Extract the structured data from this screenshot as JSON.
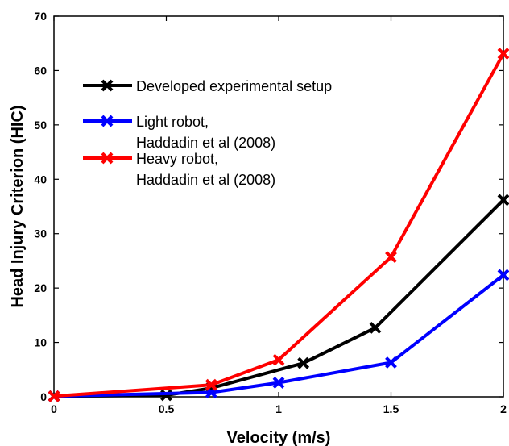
{
  "chart_data": {
    "type": "line",
    "title": "",
    "xlabel": "Velocity (m/s)",
    "ylabel": "Head Injury Criterion (HIC)",
    "xlim": [
      0,
      2
    ],
    "ylim": [
      0,
      70
    ],
    "xticks": [
      "0",
      "0.5",
      "1",
      "1.5",
      "2"
    ],
    "yticks": [
      "0",
      "10",
      "20",
      "30",
      "40",
      "50",
      "60",
      "70"
    ],
    "grid": false,
    "legend_position": "top-left",
    "series": [
      {
        "name": "Developed experimental setup",
        "legend_lines": [
          "Developed experimental setup"
        ],
        "color": "#000000",
        "marker": "x",
        "x": [
          0,
          0.5,
          0.7,
          1.11,
          1.43,
          2.0
        ],
        "y": [
          0.1,
          0.3,
          1.6,
          6.2,
          12.7,
          36.2
        ]
      },
      {
        "name": "Light robot, Haddadin et al (2008)",
        "legend_lines": [
          "Light robot,",
          "Haddadin et al (2008)"
        ],
        "color": "#0000ff",
        "marker": "x",
        "x": [
          0,
          0.7,
          1.0,
          1.5,
          2.0
        ],
        "y": [
          0.1,
          0.8,
          2.6,
          6.3,
          22.4
        ]
      },
      {
        "name": "Heavy robot, Haddadin et al (2008)",
        "legend_lines": [
          "Heavy robot,",
          "Haddadin et al (2008)"
        ],
        "color": "#ff0000",
        "marker": "x",
        "x": [
          0,
          0.7,
          1.0,
          1.5,
          2.0
        ],
        "y": [
          0.1,
          2.2,
          6.8,
          25.7,
          63.1
        ]
      }
    ]
  }
}
